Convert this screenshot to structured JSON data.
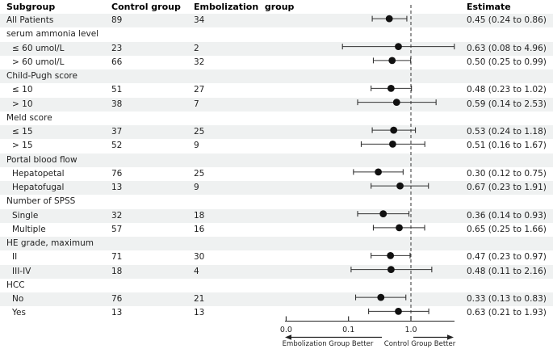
{
  "columns": {
    "subgroup": "Subgroup",
    "control": "Control group",
    "embolization": "Embolization  group",
    "estimate": "Estimate"
  },
  "chart_data": {
    "type": "forest",
    "scale": "log10",
    "xlim": [
      0.01,
      5.0
    ],
    "reference_value": 1.0,
    "ticks": [
      {
        "label": "0.0",
        "value": 0.01
      },
      {
        "label": "0.1",
        "value": 0.1
      },
      {
        "label": "1.0",
        "value": 1.0
      }
    ],
    "direction_labels": {
      "left": "Embolization Group Better",
      "right": "Control Group Better"
    },
    "rows": [
      {
        "label": "All Patients",
        "group": false,
        "indent": 0,
        "control": "89",
        "embolization": "34",
        "est": 0.45,
        "lo": 0.24,
        "hi": 0.86,
        "estimate_text": "0.45 (0.24 to 0.86)"
      },
      {
        "label": "serum ammonia level",
        "group": true,
        "indent": 0,
        "control": "",
        "embolization": "",
        "est": null,
        "lo": null,
        "hi": null,
        "estimate_text": ""
      },
      {
        "label": "≤ 60 umol/L",
        "group": false,
        "indent": 1,
        "control": "23",
        "embolization": "2",
        "est": 0.63,
        "lo": 0.08,
        "hi": 4.96,
        "estimate_text": "0.63 (0.08 to 4.96)"
      },
      {
        "label": "> 60 umol/L",
        "group": false,
        "indent": 1,
        "control": "66",
        "embolization": "32",
        "est": 0.5,
        "lo": 0.25,
        "hi": 0.99,
        "estimate_text": "0.50 (0.25 to 0.99)"
      },
      {
        "label": "Child-Pugh score",
        "group": true,
        "indent": 0,
        "control": "",
        "embolization": "",
        "est": null,
        "lo": null,
        "hi": null,
        "estimate_text": ""
      },
      {
        "label": "≤ 10",
        "group": false,
        "indent": 1,
        "control": "51",
        "embolization": "27",
        "est": 0.48,
        "lo": 0.23,
        "hi": 1.02,
        "estimate_text": "0.48 (0.23 to 1.02)"
      },
      {
        "label": "> 10",
        "group": false,
        "indent": 1,
        "control": "38",
        "embolization": "7",
        "est": 0.59,
        "lo": 0.14,
        "hi": 2.53,
        "estimate_text": "0.59 (0.14 to 2.53)"
      },
      {
        "label": "Meld score",
        "group": true,
        "indent": 0,
        "control": "",
        "embolization": "",
        "est": null,
        "lo": null,
        "hi": null,
        "estimate_text": ""
      },
      {
        "label": "≤ 15",
        "group": false,
        "indent": 1,
        "control": "37",
        "embolization": "25",
        "est": 0.53,
        "lo": 0.24,
        "hi": 1.18,
        "estimate_text": "0.53 (0.24 to 1.18)"
      },
      {
        "label": "> 15",
        "group": false,
        "indent": 1,
        "control": "52",
        "embolization": "9",
        "est": 0.51,
        "lo": 0.16,
        "hi": 1.67,
        "estimate_text": "0.51 (0.16 to 1.67)"
      },
      {
        "label": "Portal blood flow",
        "group": true,
        "indent": 0,
        "control": "",
        "embolization": "",
        "est": null,
        "lo": null,
        "hi": null,
        "estimate_text": ""
      },
      {
        "label": "Hepatopetal",
        "group": false,
        "indent": 1,
        "control": "76",
        "embolization": "25",
        "est": 0.3,
        "lo": 0.12,
        "hi": 0.75,
        "estimate_text": "0.30 (0.12 to 0.75)"
      },
      {
        "label": "Hepatofugal",
        "group": false,
        "indent": 1,
        "control": "13",
        "embolization": "9",
        "est": 0.67,
        "lo": 0.23,
        "hi": 1.91,
        "estimate_text": "0.67 (0.23 to 1.91)"
      },
      {
        "label": "Number of SPSS",
        "group": true,
        "indent": 0,
        "control": "",
        "embolization": "",
        "est": null,
        "lo": null,
        "hi": null,
        "estimate_text": ""
      },
      {
        "label": "Single",
        "group": false,
        "indent": 1,
        "control": "32",
        "embolization": "18",
        "est": 0.36,
        "lo": 0.14,
        "hi": 0.93,
        "estimate_text": "0.36 (0.14 to 0.93)"
      },
      {
        "label": "Multiple",
        "group": false,
        "indent": 1,
        "control": "57",
        "embolization": "16",
        "est": 0.65,
        "lo": 0.25,
        "hi": 1.66,
        "estimate_text": "0.65 (0.25 to 1.66)"
      },
      {
        "label": "HE grade, maximum",
        "group": true,
        "indent": 0,
        "control": "",
        "embolization": "",
        "est": null,
        "lo": null,
        "hi": null,
        "estimate_text": ""
      },
      {
        "label": "II",
        "group": false,
        "indent": 1,
        "control": "71",
        "embolization": "30",
        "est": 0.47,
        "lo": 0.23,
        "hi": 0.97,
        "estimate_text": "0.47 (0.23 to 0.97)"
      },
      {
        "label": "III-IV",
        "group": false,
        "indent": 1,
        "control": "18",
        "embolization": "4",
        "est": 0.48,
        "lo": 0.11,
        "hi": 2.16,
        "estimate_text": "0.48 (0.11 to 2.16)"
      },
      {
        "label": "HCC",
        "group": true,
        "indent": 0,
        "control": "",
        "embolization": "",
        "est": null,
        "lo": null,
        "hi": null,
        "estimate_text": ""
      },
      {
        "label": "No",
        "group": false,
        "indent": 1,
        "control": "76",
        "embolization": "21",
        "est": 0.33,
        "lo": 0.13,
        "hi": 0.83,
        "estimate_text": "0.33 (0.13 to 0.83)"
      },
      {
        "label": "Yes",
        "group": false,
        "indent": 1,
        "control": "13",
        "embolization": "13",
        "est": 0.63,
        "lo": 0.21,
        "hi": 1.93,
        "estimate_text": "0.63 (0.21 to 1.93)"
      }
    ]
  },
  "colors": {
    "stripe": "#eff1f1",
    "marker": "#111111",
    "ci": "#333333",
    "reference": "#555555",
    "axis": "#222222",
    "text": "#1f1f1f"
  }
}
